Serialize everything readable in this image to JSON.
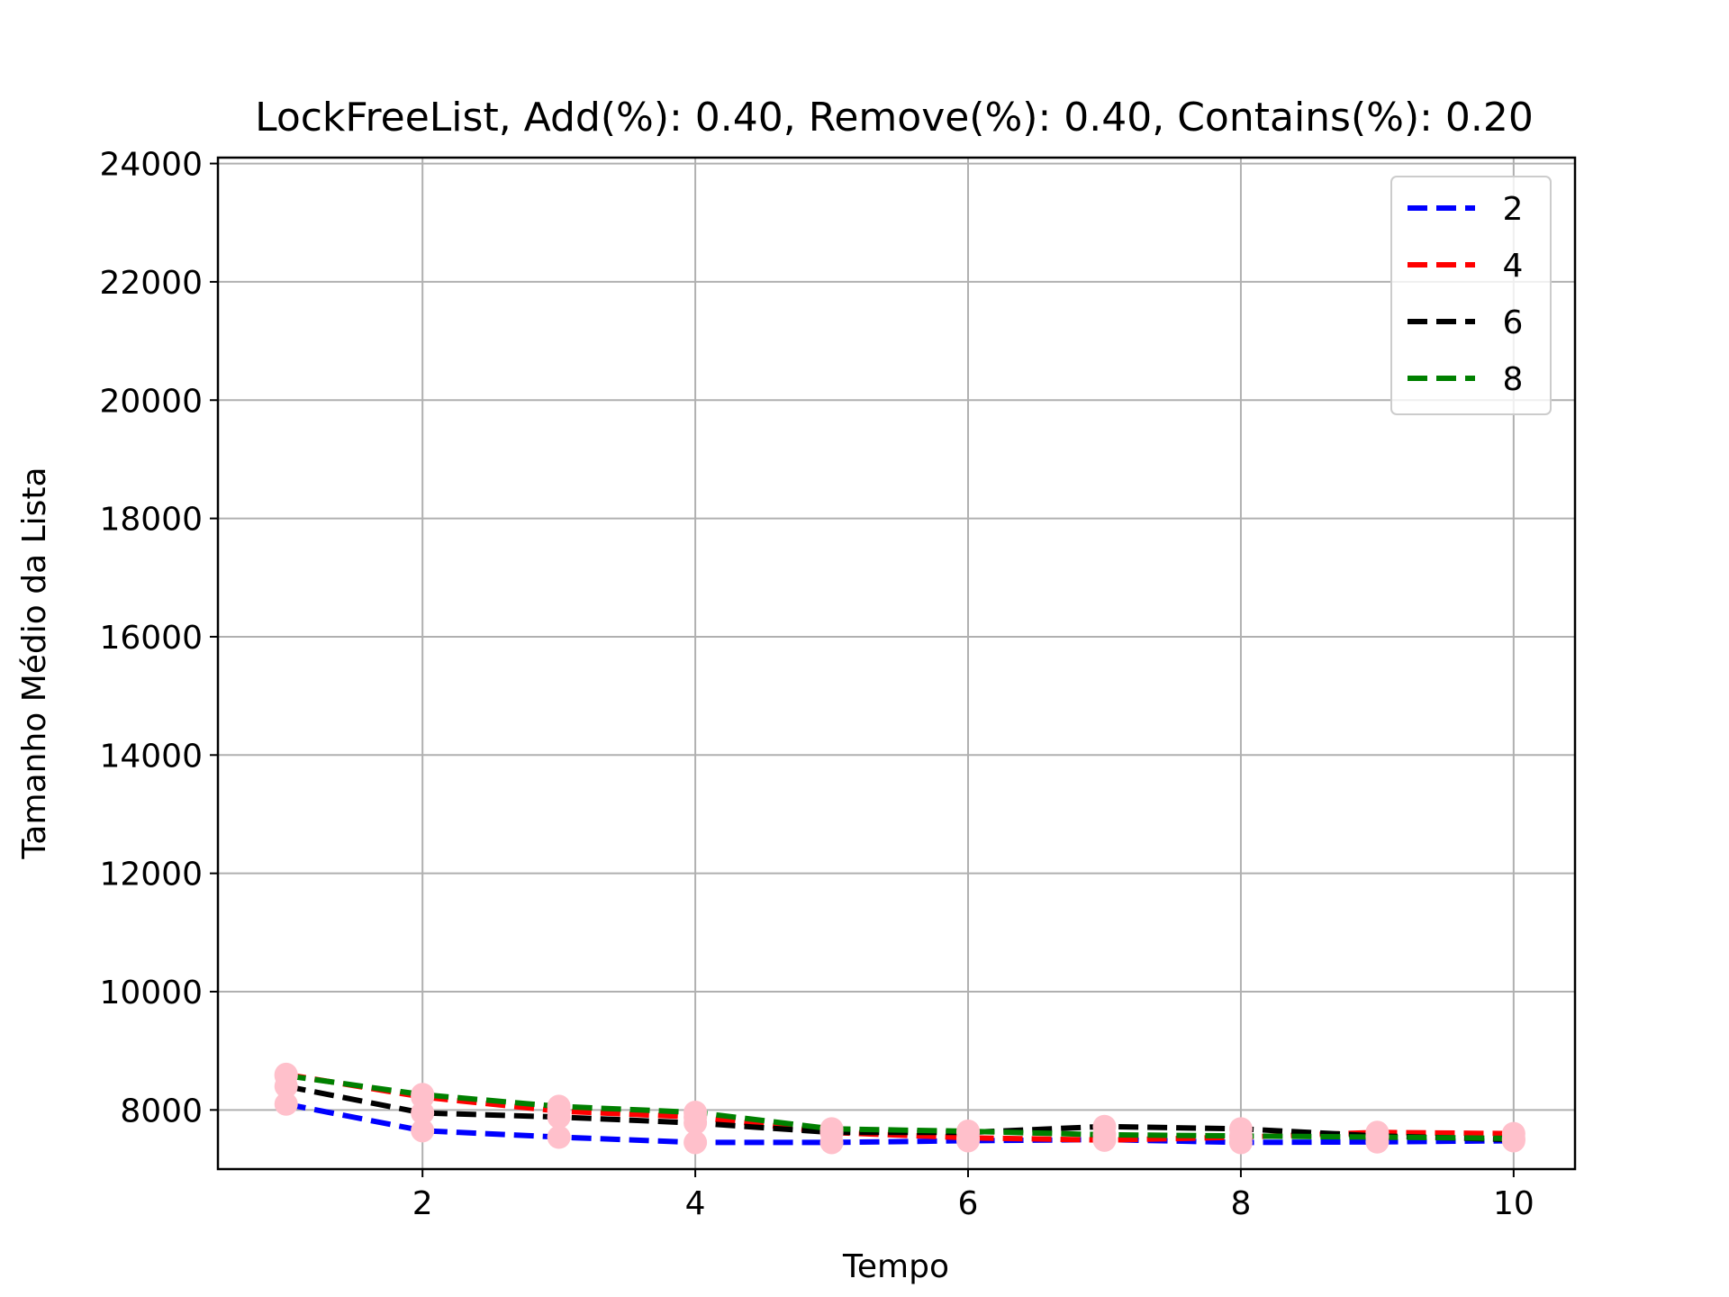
{
  "chart_data": {
    "type": "line",
    "title": "LockFreeList, Add(%): 0.40, Remove(%): 0.40, Contains(%): 0.20",
    "xlabel": "Tempo",
    "ylabel": "Tamanho Médio da Lista",
    "xlim": [
      0.5,
      10.45
    ],
    "ylim": [
      7000,
      24100
    ],
    "xticks": [
      2,
      4,
      6,
      8,
      10
    ],
    "xtick_labels": [
      "2",
      "4",
      "6",
      "8",
      "10"
    ],
    "yticks": [
      8000,
      10000,
      12000,
      14000,
      16000,
      18000,
      20000,
      22000,
      24000
    ],
    "ytick_labels": [
      "8000",
      "10000",
      "12000",
      "14000",
      "16000",
      "18000",
      "20000",
      "22000",
      "24000"
    ],
    "grid": true,
    "legend_position": "top-right",
    "line_style": "dashed",
    "marker_color": "#ffc0cb",
    "x": [
      1,
      2,
      3,
      4,
      5,
      6,
      7,
      8,
      9,
      10
    ],
    "series": [
      {
        "name": "2",
        "color": "#0000ff",
        "values": [
          8100,
          7650,
          7540,
          7450,
          7450,
          7480,
          7500,
          7450,
          7460,
          7480
        ]
      },
      {
        "name": "4",
        "color": "#ff0000",
        "values": [
          8600,
          8220,
          7980,
          7880,
          7620,
          7530,
          7490,
          7540,
          7620,
          7600
        ]
      },
      {
        "name": "6",
        "color": "#000000",
        "values": [
          8400,
          7950,
          7880,
          7780,
          7620,
          7620,
          7720,
          7680,
          7560,
          7500
        ]
      },
      {
        "name": "8",
        "color": "#008000",
        "values": [
          8580,
          8260,
          8060,
          7960,
          7680,
          7640,
          7580,
          7560,
          7540,
          7520
        ]
      }
    ]
  }
}
